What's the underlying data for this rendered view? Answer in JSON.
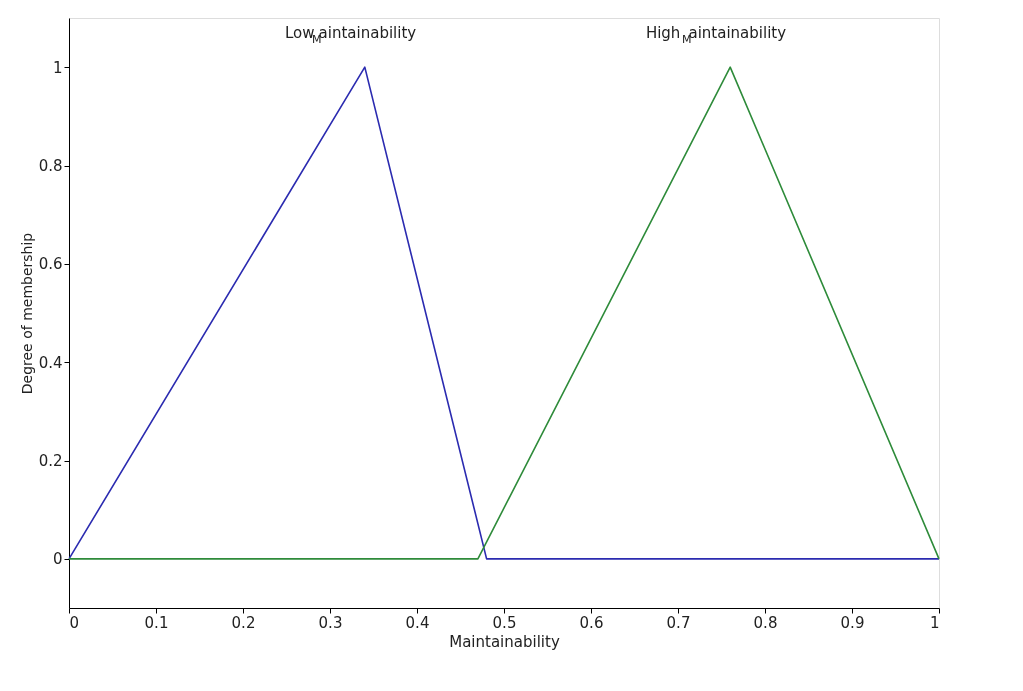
{
  "chart_data": {
    "type": "line",
    "xlabel": "Maintainability",
    "ylabel": "Degree of membership",
    "series": [
      {
        "name": "Low$_{M}$aintainability",
        "color": "#2b2bb0",
        "x": [
          0,
          0.34,
          0.48,
          1
        ],
        "values": [
          0,
          1,
          0,
          0
        ]
      },
      {
        "name": "High$_{M}$aintainability",
        "color": "#2e8b3a",
        "x": [
          0,
          0.47,
          0.76,
          1
        ],
        "values": [
          0,
          0,
          1,
          0
        ]
      }
    ],
    "xlim": [
      0,
      1
    ],
    "xticks": [
      0,
      0.1,
      0.2,
      0.3,
      0.4,
      0.5,
      0.6,
      0.7,
      0.8,
      0.9,
      1
    ],
    "ylim": [
      -0.1,
      1.1
    ],
    "yticks": [
      0,
      0.2,
      0.4,
      0.6,
      0.8,
      1
    ],
    "grid": false,
    "marker": "none",
    "line_style": "solid"
  }
}
